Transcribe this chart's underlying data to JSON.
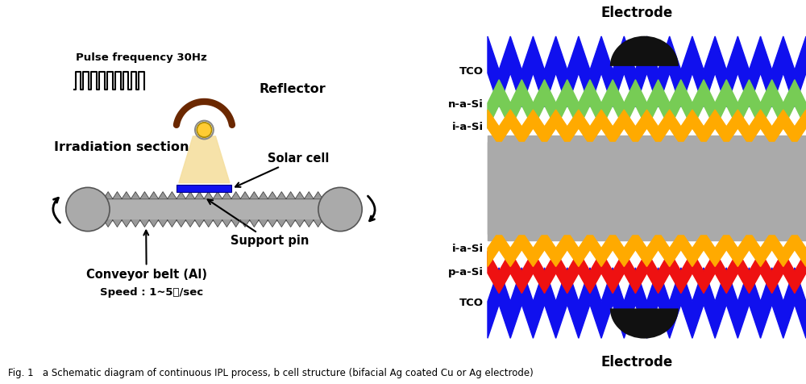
{
  "bg_color": "#ffffff",
  "fig_caption": "Fig. 1   a Schematic diagram of continuous IPL process, b cell structure (bifacial Ag coated Cu or Ag electrode)",
  "left_panel": {
    "pulse_label": "Pulse frequency 30Hz",
    "reflector_label": "Reflector",
    "irradiation_label": "Irradiation section",
    "solar_cell_label": "Solar cell",
    "support_pin_label": "Support pin",
    "conveyor_label": "Conveyor belt (Al)",
    "speed_label": "Speed : 1~5㎝/sec",
    "belt_color": "#b0b0b0",
    "roller_color": "#aaaaaa",
    "solar_cell_color": "#1010ee",
    "reflector_color": "#6b2800",
    "lamp_color": "#ffcc33",
    "light_cone_color": "#f5dfa0",
    "pulse_signal_color": "#000000"
  },
  "right_panel": {
    "electrode_label_top": "Electrode",
    "electrode_label_bottom": "Electrode",
    "electrode_color": "#111111",
    "nsi_color": "#aaaaaa",
    "tco_color": "#1010ee",
    "nasi_color": "#77cc55",
    "iasi_color": "#ffaa00",
    "pasi_color": "#ee1111",
    "n_zigzag": 14
  }
}
